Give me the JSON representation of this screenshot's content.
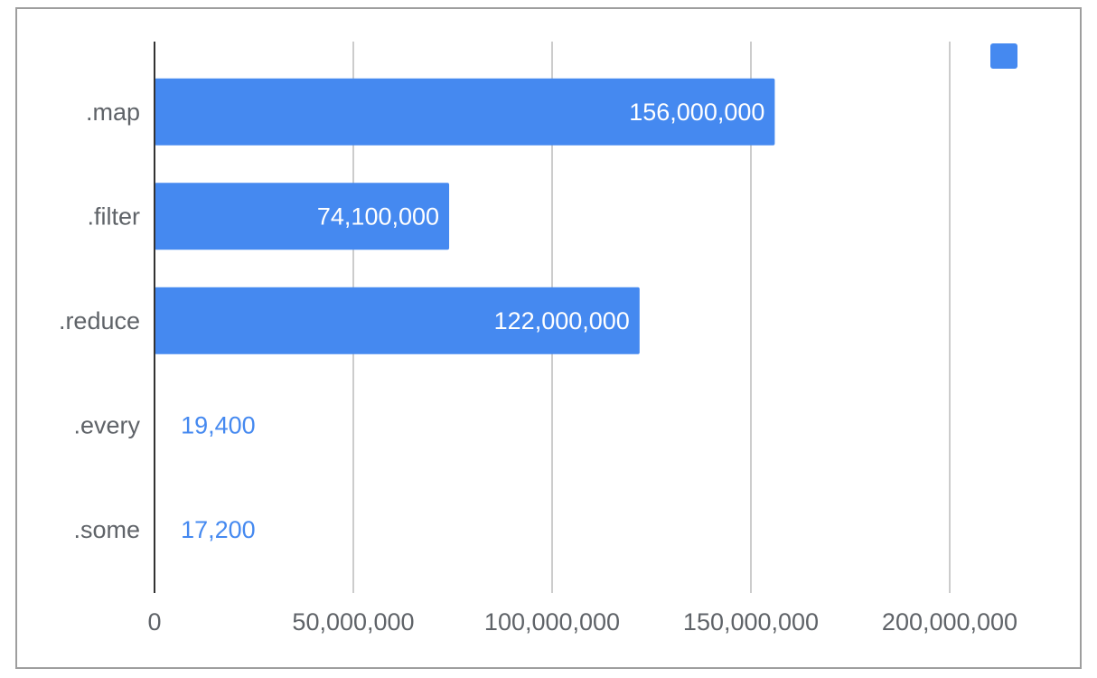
{
  "chart_data": {
    "type": "bar",
    "orientation": "horizontal",
    "title": "",
    "xlabel": "",
    "ylabel": "",
    "categories": [
      ".map",
      ".filter",
      ".reduce",
      ".every",
      ".some"
    ],
    "series": [
      {
        "values": [
          156000000,
          74100000,
          122000000,
          19400,
          17200
        ],
        "data_labels": [
          "156,000,000",
          "74,100,000",
          "122,000,000",
          "19,400",
          "17,200"
        ],
        "color": "#4589f0"
      }
    ],
    "xlim": [
      0,
      200000000
    ],
    "x_ticks": [
      0,
      50000000,
      100000000,
      150000000,
      200000000
    ],
    "x_tick_labels": [
      "0",
      "50,000,000",
      "100,000,000",
      "150,000,000",
      "200,000,000"
    ],
    "grid": true,
    "legend": {
      "position": "top-right"
    },
    "colors": {
      "bar": "#4589f0",
      "grid": "#cccccc",
      "axis": "#333333",
      "label": "#5f6368"
    }
  }
}
